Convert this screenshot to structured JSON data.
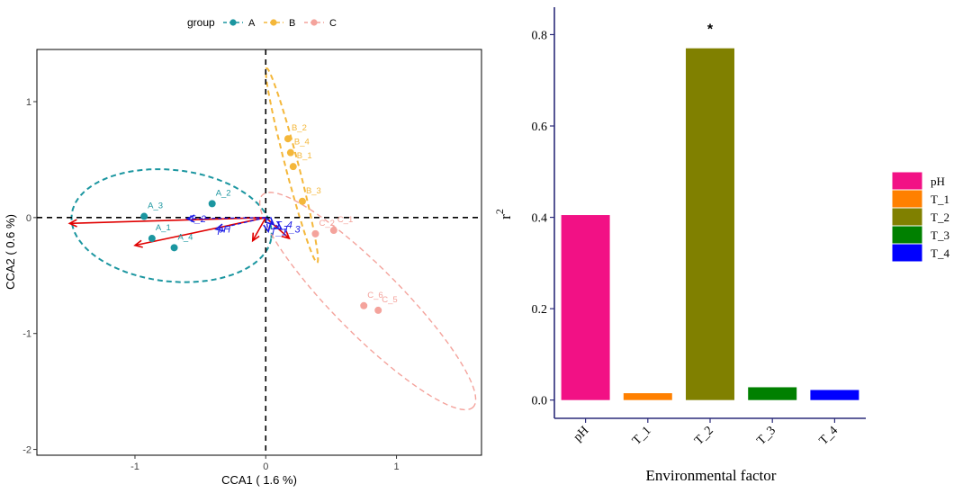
{
  "chart_data": [
    {
      "type": "scatter",
      "xlabel": "CCA1 ( 1.6 %)",
      "ylabel": "CCA2 ( 0.6 %)",
      "xlim": [
        -1.75,
        1.65
      ],
      "ylim": [
        -2.05,
        1.45
      ],
      "x_ticks": [
        -1,
        0,
        1
      ],
      "y_ticks": [
        -2,
        -1,
        0,
        1
      ],
      "grid": false,
      "legend": {
        "title": "group",
        "position": "top",
        "items": [
          "A",
          "B",
          "C"
        ]
      },
      "colors": {
        "A": "#1b96a0",
        "B": "#f4b73a",
        "C": "#f4a39c",
        "arrows_red": "#e00000",
        "arrows_blue": "#1a1ae6"
      },
      "series": [
        {
          "name": "A",
          "points": [
            {
              "label": "A_2",
              "x": -0.41,
              "y": 0.12
            },
            {
              "label": "A_3",
              "x": -0.93,
              "y": 0.01
            },
            {
              "label": "A_1",
              "x": -0.87,
              "y": -0.18
            },
            {
              "label": "A_4",
              "x": -0.7,
              "y": -0.26
            }
          ],
          "ellipse": {
            "cx": -0.72,
            "cy": -0.07,
            "rx": 0.77,
            "ry": 0.48,
            "angle": -8
          }
        },
        {
          "name": "B",
          "points": [
            {
              "label": "B_2",
              "x": 0.17,
              "y": 0.68
            },
            {
              "label": "B_4",
              "x": 0.19,
              "y": 0.56
            },
            {
              "label": "B_1",
              "x": 0.21,
              "y": 0.44
            },
            {
              "label": "B_3",
              "x": 0.28,
              "y": 0.14
            }
          ],
          "ellipse": {
            "cx": 0.2,
            "cy": 0.45,
            "rx": 0.86,
            "ry": 0.05,
            "angle": -77
          }
        },
        {
          "name": "C",
          "points": [
            {
              "label": "C_2",
              "x": 0.38,
              "y": -0.14
            },
            {
              "label": "C_1",
              "x": 0.52,
              "y": -0.11
            },
            {
              "label": "C_6",
              "x": 0.75,
              "y": -0.76
            },
            {
              "label": "C_5",
              "x": 0.86,
              "y": -0.8
            }
          ],
          "ellipse": {
            "cx": 0.78,
            "cy": -0.72,
            "rx": 1.22,
            "ry": 0.27,
            "angle": -49
          }
        }
      ],
      "arrows": [
        {
          "label": "",
          "x": -1.5,
          "y": -0.05,
          "color": "red"
        },
        {
          "label": "",
          "x": -1.0,
          "y": -0.24,
          "color": "red"
        },
        {
          "label": "pH",
          "x": -0.38,
          "y": -0.1,
          "color": "blue"
        },
        {
          "label": "T_2",
          "x": -0.6,
          "y": -0.01,
          "color": "blue"
        },
        {
          "label": "",
          "x": 0.18,
          "y": -0.18,
          "color": "red"
        },
        {
          "label": "",
          "x": -0.1,
          "y": -0.2,
          "color": "red"
        },
        {
          "label": "T_1",
          "x": 0.02,
          "y": -0.12,
          "color": "blue"
        },
        {
          "label": "T_3",
          "x": 0.12,
          "y": -0.1,
          "color": "blue"
        },
        {
          "label": "T_4",
          "x": 0.06,
          "y": -0.06,
          "color": "blue"
        }
      ]
    },
    {
      "type": "bar",
      "xlabel": "Environmental factor",
      "ylabel": "r",
      "ylabel_superscript": "2",
      "categories": [
        "pH",
        "T_1",
        "T_2",
        "T_3",
        "T_4"
      ],
      "values": [
        0.405,
        0.015,
        0.77,
        0.028,
        0.022
      ],
      "colors": [
        "#f21185",
        "#ff8000",
        "#808000",
        "#008000",
        "#0000ff"
      ],
      "significance": [
        "",
        "",
        "*",
        "",
        ""
      ],
      "ylim": [
        -0.04,
        0.86
      ],
      "y_ticks": [
        "0.0",
        "0.2",
        "0.4",
        "0.6",
        "0.8"
      ],
      "legend": {
        "position": "right",
        "items": [
          "pH",
          "T_1",
          "T_2",
          "T_3",
          "T_4"
        ]
      }
    }
  ]
}
